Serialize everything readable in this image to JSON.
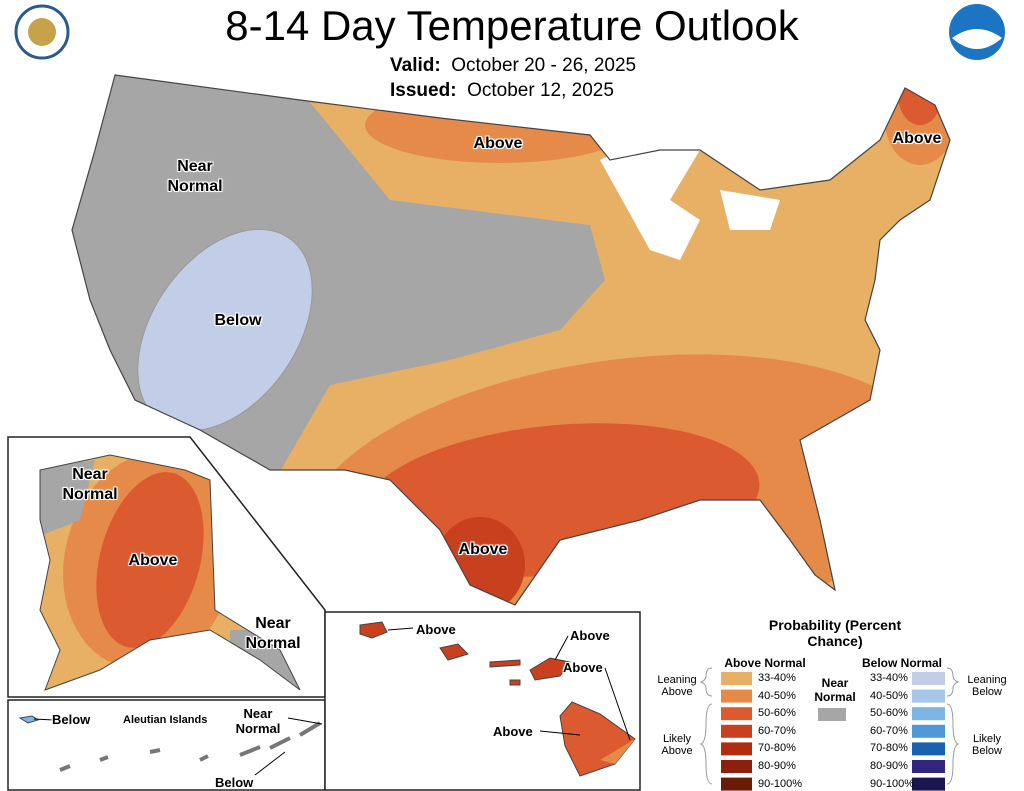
{
  "header": {
    "title": "8-14 Day Temperature Outlook",
    "valid_label": "Valid:",
    "valid": "October 20 - 26, 2025",
    "issued_label": "Issued:",
    "issued": "October 12, 2025"
  },
  "map_labels": [
    {
      "text": "Near Normal",
      "region": "conus"
    },
    {
      "text": "Above",
      "region": "conus"
    },
    {
      "text": "Above",
      "region": "conus"
    },
    {
      "text": "Below",
      "region": "conus"
    },
    {
      "text": "Above",
      "region": "conus"
    },
    {
      "text": "Near Normal",
      "region": "alaska"
    },
    {
      "text": "Above",
      "region": "alaska"
    },
    {
      "text": "Near Normal",
      "region": "alaska"
    },
    {
      "text": "Below",
      "region": "aleutians"
    },
    {
      "text": "Aleutian Islands",
      "region": "aleutians"
    },
    {
      "text": "Near Normal",
      "region": "aleutians"
    },
    {
      "text": "Below",
      "region": "aleutians"
    },
    {
      "text": "Above",
      "region": "hawaii"
    },
    {
      "text": "Above",
      "region": "hawaii"
    },
    {
      "text": "Above",
      "region": "hawaii"
    },
    {
      "text": "Above",
      "region": "hawaii"
    }
  ],
  "legend": {
    "title": "Probability (Percent Chance)",
    "above": {
      "title": "Above Normal",
      "leaning": "Leaning Above",
      "likely": "Likely Above",
      "items": [
        {
          "range": "33-40%",
          "color": "#e8b064"
        },
        {
          "range": "40-50%",
          "color": "#e58a48"
        },
        {
          "range": "50-60%",
          "color": "#dc5a30"
        },
        {
          "range": "60-70%",
          "color": "#c8401e"
        },
        {
          "range": "70-80%",
          "color": "#b02e10"
        },
        {
          "range": "80-90%",
          "color": "#8c200a"
        },
        {
          "range": "90-100%",
          "color": "#6b1a05"
        }
      ]
    },
    "below": {
      "title": "Below Normal",
      "leaning": "Leaning Below",
      "likely": "Likely Below",
      "items": [
        {
          "range": "33-40%",
          "color": "#c2cde8"
        },
        {
          "range": "40-50%",
          "color": "#a7c5e6"
        },
        {
          "range": "50-60%",
          "color": "#7db5e4"
        },
        {
          "range": "60-70%",
          "color": "#4f9ad6"
        },
        {
          "range": "70-80%",
          "color": "#1a62b0"
        },
        {
          "range": "80-90%",
          "color": "#302680"
        },
        {
          "range": "90-100%",
          "color": "#1a1650"
        }
      ]
    },
    "near": {
      "title": "Near Normal",
      "color": "#a6a6a6"
    }
  }
}
